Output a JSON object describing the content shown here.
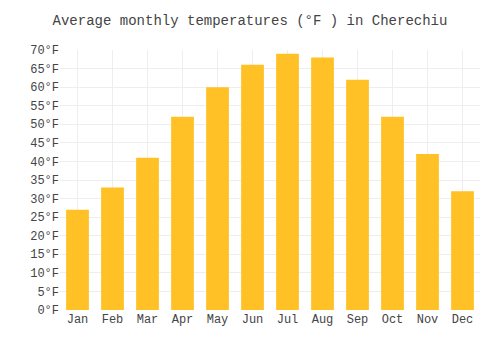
{
  "chart_data": {
    "type": "bar",
    "title": "Average monthly temperatures (°F ) in Cherechiu",
    "categories": [
      "Jan",
      "Feb",
      "Mar",
      "Apr",
      "May",
      "Jun",
      "Jul",
      "Aug",
      "Sep",
      "Oct",
      "Nov",
      "Dec"
    ],
    "values": [
      27,
      33,
      41,
      52,
      60,
      66,
      69,
      68,
      62,
      52,
      42,
      32
    ],
    "color": "#FFC125",
    "ylim": [
      0,
      70
    ],
    "yticks": [
      {
        "value": 0,
        "label": "0°F"
      },
      {
        "value": 5,
        "label": "5°F"
      },
      {
        "value": 10,
        "label": "10°F"
      },
      {
        "value": 15,
        "label": "15°F"
      },
      {
        "value": 20,
        "label": "20°F"
      },
      {
        "value": 25,
        "label": "25°F"
      },
      {
        "value": 30,
        "label": "30°F"
      },
      {
        "value": 35,
        "label": "35°F"
      },
      {
        "value": 40,
        "label": "40°F"
      },
      {
        "value": 45,
        "label": "45°F"
      },
      {
        "value": 50,
        "label": "50°F"
      },
      {
        "value": 55,
        "label": "55°F"
      },
      {
        "value": 60,
        "label": "60°F"
      },
      {
        "value": 65,
        "label": "65°F"
      },
      {
        "value": 70,
        "label": "70°F"
      }
    ],
    "grid": true
  }
}
